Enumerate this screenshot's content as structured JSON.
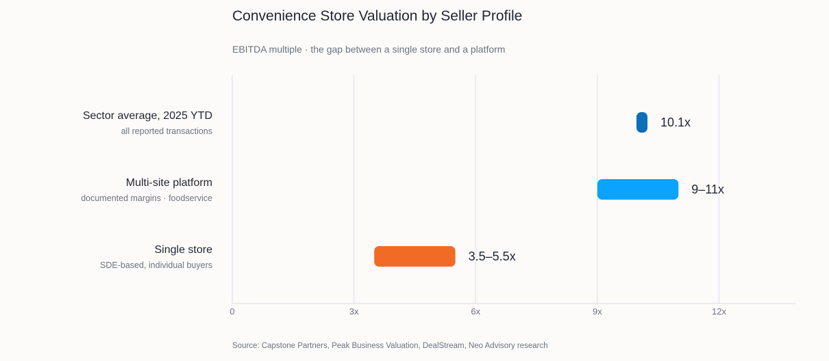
{
  "title": "Convenience Store Valuation by Seller Profile",
  "subtitle": "EBITDA multiple · the gap between a single store and a platform",
  "source": "Source: Capstone Partners, Peak Business Valuation, DealStream, Neo Advisory research",
  "chart_data": {
    "type": "bar",
    "orientation": "horizontal-range",
    "xlim": [
      0,
      13.9
    ],
    "ticks": [
      {
        "value": 0,
        "label": "0"
      },
      {
        "value": 3,
        "label": "3x"
      },
      {
        "value": 6,
        "label": "6x"
      },
      {
        "value": 9,
        "label": "9x"
      },
      {
        "value": 12,
        "label": "12x"
      }
    ],
    "grid": true,
    "rows": [
      {
        "label": "Sector average, 2025 YTD",
        "sublabel": "all reported transactions",
        "low": 10.1,
        "high": 10.1,
        "value_label": "10.1x",
        "color": "#0e6eb8"
      },
      {
        "label": "Multi-site platform",
        "sublabel": "documented margins · foodservice",
        "low": 9,
        "high": 11,
        "value_label": "9–11x",
        "color": "#0aa3ff"
      },
      {
        "label": "Single store",
        "sublabel": "SDE-based, individual buyers",
        "low": 3.5,
        "high": 5.5,
        "value_label": "3.5–5.5x",
        "color": "#f26b26"
      }
    ]
  }
}
